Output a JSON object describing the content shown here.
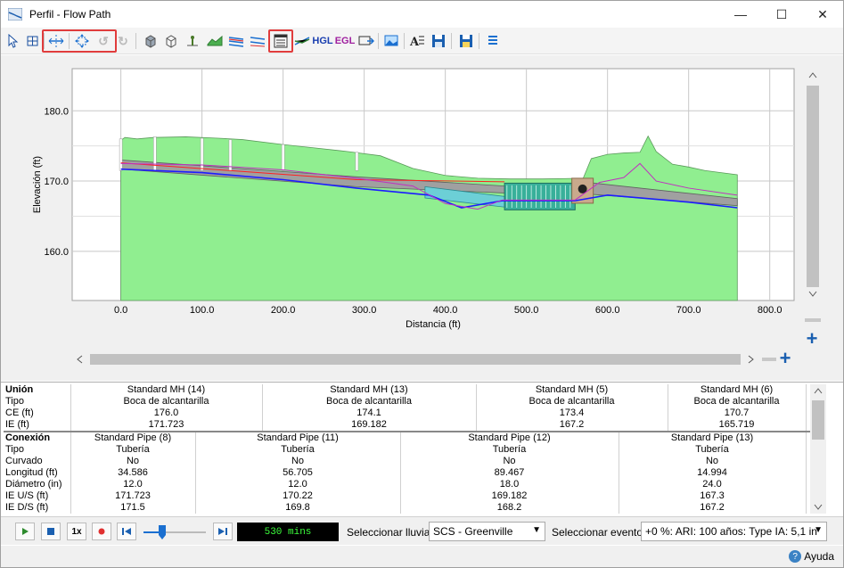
{
  "window": {
    "title": "Perfil - Flow Path",
    "minimize": "—",
    "maximize": "☐",
    "close": "✕"
  },
  "toolbar": {
    "hgl_label": "HGL",
    "egl_label": "EGL"
  },
  "chart_data": {
    "type": "area",
    "ylabel": "Elevación (ft)",
    "xlabel": "Distancia (ft)",
    "xlim": [
      -60,
      830
    ],
    "ylim": [
      153,
      186
    ],
    "x_ticks": [
      "0.0",
      "100.0",
      "200.0",
      "300.0",
      "400.0",
      "500.0",
      "600.0",
      "700.0",
      "800.0"
    ],
    "x_tick_values": [
      0,
      100,
      200,
      300,
      400,
      500,
      600,
      700,
      800
    ],
    "y_ticks": [
      "180.0",
      "170.0",
      "160.0"
    ],
    "y_tick_values": [
      180,
      170,
      160
    ],
    "grid": true,
    "colors": {
      "ground": "#90ee90",
      "pipe": "#a0a0a0",
      "culvert": "#6ccfd6",
      "hgl": "#1c1cff",
      "egl": "#c030c0",
      "invert": "#ff2020"
    },
    "ground": {
      "x": [
        0,
        5,
        20,
        40,
        80,
        120,
        150,
        200,
        240,
        280,
        320,
        360,
        400,
        440,
        480,
        520,
        570,
        580,
        600,
        620,
        640,
        650,
        660,
        680,
        700,
        720,
        740,
        760
      ],
      "y": [
        175.8,
        176.2,
        176.0,
        176.2,
        176.3,
        176.1,
        175.9,
        175.2,
        174.7,
        174.2,
        173.6,
        171.8,
        170.8,
        170.4,
        170.3,
        170.3,
        170.4,
        173.2,
        173.8,
        174.0,
        174.1,
        176.4,
        174.2,
        172.4,
        172.0,
        171.5,
        171.2,
        170.9
      ]
    },
    "hgl": {
      "x": [
        0,
        100,
        200,
        290,
        380,
        420,
        470,
        560,
        600,
        700,
        760
      ],
      "y": [
        171.7,
        171.2,
        170.2,
        169.0,
        168.0,
        166.2,
        167.2,
        167.2,
        168.0,
        167.0,
        166.2
      ]
    },
    "egl": {
      "x": [
        0,
        100,
        200,
        290,
        360,
        400,
        440,
        470,
        560,
        590,
        620,
        640,
        660,
        700,
        760
      ],
      "y": [
        172.5,
        172.3,
        171.6,
        170.4,
        169.3,
        166.8,
        166.0,
        167.3,
        167.3,
        169.8,
        170.5,
        172.5,
        170.0,
        169.0,
        168.0
      ]
    },
    "nodes": [
      {
        "name": "Standard MH (14)",
        "x": 0,
        "ce": 176.0,
        "ie": 171.723
      },
      {
        "name": "Standard MH (13)",
        "x": 291,
        "ce": 174.1,
        "ie": 169.182
      },
      {
        "name": "Standard MH (5)",
        "x": 473,
        "ce": 173.4,
        "ie": 167.2
      },
      {
        "name": "Standard MH (6)",
        "x": 560,
        "ce": 170.7,
        "ie": 165.719
      }
    ]
  },
  "grid": {
    "union_section": {
      "header": "Unión",
      "row_labels": [
        "Tipo",
        "CE (ft)",
        "IE (ft)"
      ],
      "columns": [
        {
          "name": "Standard MH (14)",
          "tipo": "Boca de alcantarilla",
          "ce": "176.0",
          "ie": "171.723"
        },
        {
          "name": "Standard MH (13)",
          "tipo": "Boca de alcantarilla",
          "ce": "174.1",
          "ie": "169.182"
        },
        {
          "name": "Standard MH (5)",
          "tipo": "Boca de alcantarilla",
          "ce": "173.4",
          "ie": "167.2"
        },
        {
          "name": "Standard MH (6)",
          "tipo": "Boca de alcantarilla",
          "ce": "170.7",
          "ie": "165.719"
        }
      ]
    },
    "conexion_section": {
      "header": "Conexión",
      "row_labels": [
        "Tipo",
        "Curvado",
        "Longitud (ft)",
        "Diámetro (in)",
        "IE U/S (ft)",
        "IE D/S (ft)"
      ],
      "columns": [
        {
          "name": "Standard Pipe (8)",
          "tipo": "Tubería",
          "curvado": "No",
          "longitud": "34.586",
          "diametro": "12.0",
          "ie_us": "171.723",
          "ie_ds": "171.5"
        },
        {
          "name": "Standard Pipe (11)",
          "tipo": "Tubería",
          "curvado": "No",
          "longitud": "56.705",
          "diametro": "12.0",
          "ie_us": "170.22",
          "ie_ds": "169.8"
        },
        {
          "name": "Standard Pipe (12)",
          "tipo": "Tubería",
          "curvado": "No",
          "longitud": "89.467",
          "diametro": "18.0",
          "ie_us": "169.182",
          "ie_ds": "168.2"
        },
        {
          "name": "Standard Pipe (13)",
          "tipo": "Tubería",
          "curvado": "No",
          "longitud": "14.994",
          "diametro": "24.0",
          "ie_us": "167.3",
          "ie_ds": "167.2"
        }
      ]
    }
  },
  "playback": {
    "speed_label": "1x",
    "time": "530 mins",
    "progress": 0.3,
    "rain_label": "Seleccionar lluvia:",
    "rain_value": "SCS - Greenville",
    "event_label": "Seleccionar evento:",
    "event_value": "+0 %: ARI: 100 años: Type IA: 5,1 in"
  },
  "status": {
    "help_label": "Ayuda"
  }
}
